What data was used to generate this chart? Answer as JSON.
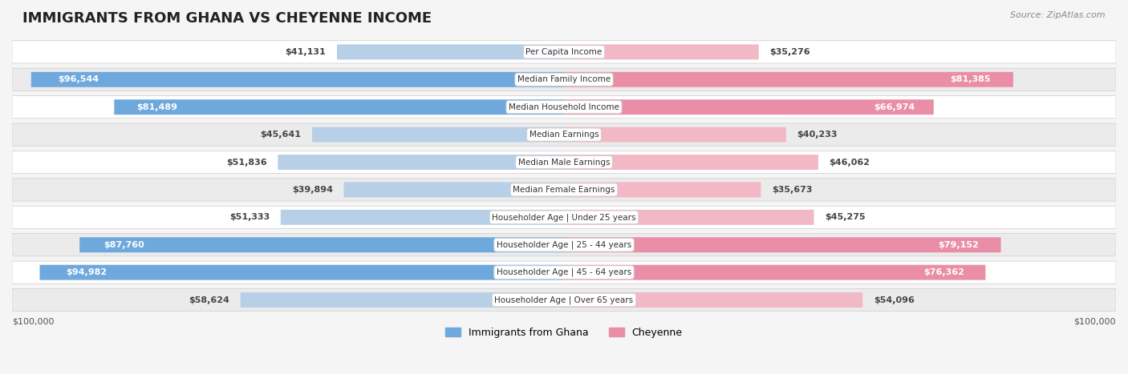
{
  "title": "IMMIGRANTS FROM GHANA VS CHEYENNE INCOME",
  "source": "Source: ZipAtlas.com",
  "categories": [
    "Per Capita Income",
    "Median Family Income",
    "Median Household Income",
    "Median Earnings",
    "Median Male Earnings",
    "Median Female Earnings",
    "Householder Age | Under 25 years",
    "Householder Age | 25 - 44 years",
    "Householder Age | 45 - 64 years",
    "Householder Age | Over 65 years"
  ],
  "ghana_values": [
    41131,
    96544,
    81489,
    45641,
    51836,
    39894,
    51333,
    87760,
    94982,
    58624
  ],
  "cheyenne_values": [
    35276,
    81385,
    66974,
    40233,
    46062,
    35673,
    45275,
    79152,
    76362,
    54096
  ],
  "ghana_labels": [
    "$41,131",
    "$96,544",
    "$81,489",
    "$45,641",
    "$51,836",
    "$39,894",
    "$51,333",
    "$87,760",
    "$94,982",
    "$58,624"
  ],
  "cheyenne_labels": [
    "$35,276",
    "$81,385",
    "$66,974",
    "$40,233",
    "$46,062",
    "$35,673",
    "$45,275",
    "$79,152",
    "$76,362",
    "$54,096"
  ],
  "ghana_color_full": "#6fa8dc",
  "ghana_color_light": "#b8cfe8",
  "cheyenne_color_full": "#ea8ea7",
  "cheyenne_color_light": "#f2b8c6",
  "max_value": 100000,
  "background_color": "#f5f5f5",
  "row_background": "#ffffff",
  "row_alt_background": "#f0f0f0",
  "label_bg": "#ffffff",
  "axis_label_left": "$100,000",
  "axis_label_right": "$100,000",
  "legend_ghana": "Immigrants from Ghana",
  "legend_cheyenne": "Cheyenne"
}
